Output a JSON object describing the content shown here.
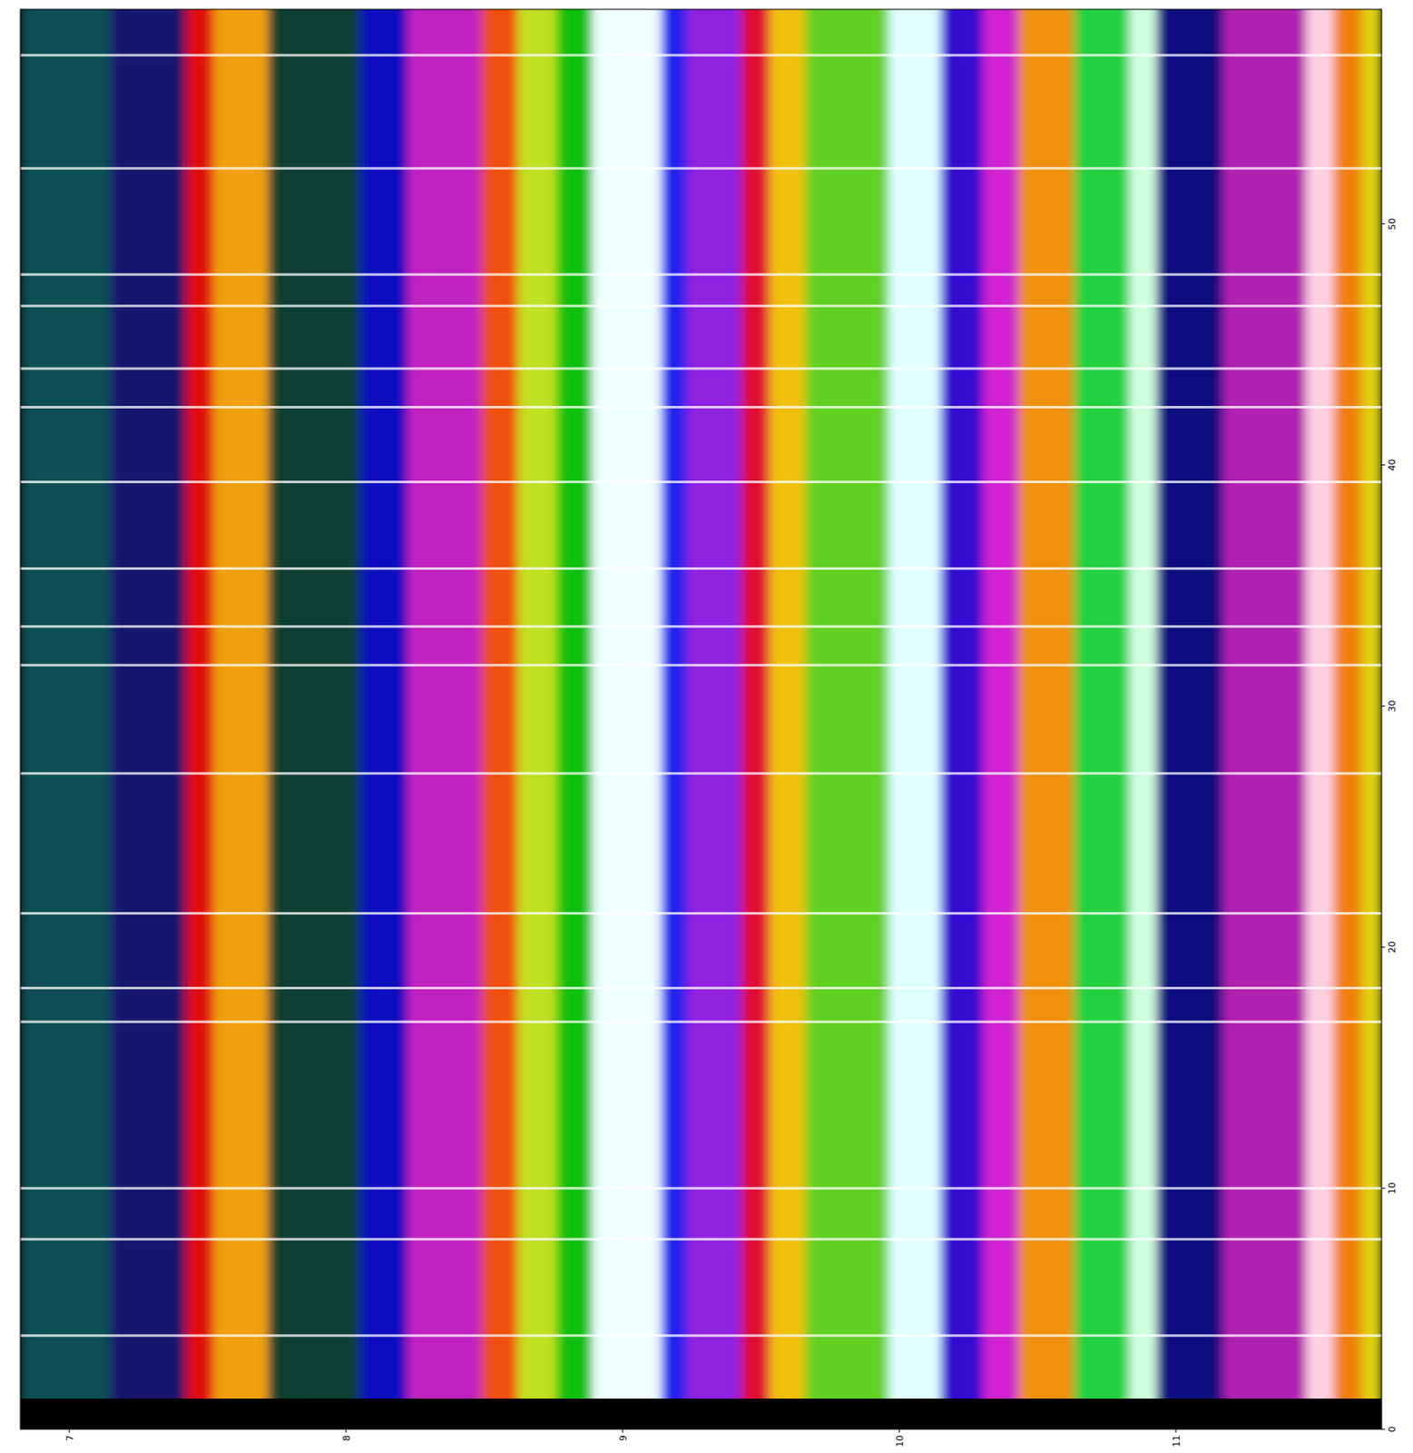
{
  "chart_data": {
    "type": "image",
    "xlim": [
      6.823,
      11.743
    ],
    "ylim": [
      0,
      58.9
    ],
    "xticks": [
      7,
      8,
      9,
      10,
      11
    ],
    "yticks": [
      0,
      10,
      20,
      30,
      40,
      50
    ],
    "y_range": [
      1.27,
      58.9
    ],
    "x_edges": [
      6.823,
      7.15,
      7.42,
      7.52,
      7.72,
      8.05,
      8.22,
      8.49,
      8.62,
      8.76,
      8.89,
      9.14,
      9.23,
      9.43,
      9.53,
      9.66,
      9.96,
      10.15,
      10.3,
      10.43,
      10.63,
      10.83,
      10.93,
      11.17,
      11.47,
      11.57,
      11.67,
      11.743
    ],
    "colors": [
      "#0b4f55",
      "#14146e",
      "#e01010",
      "#f0a010",
      "#0a4030",
      "#1010c0",
      "#c020c0",
      "#f05010",
      "#c0e020",
      "#10c010",
      "#f0ffff",
      "#2020f0",
      "#9020e0",
      "#e01030",
      "#f0c010",
      "#60d020",
      "#e0ffff",
      "#3010d0",
      "#d020d0",
      "#f09010",
      "#20d040",
      "#d0ffe0",
      "#101080",
      "#b020b0",
      "#ffd0e0",
      "#f08010",
      "#e0d010"
    ],
    "row_lines": [
      3.88,
      7.88,
      10.0,
      16.9,
      18.3,
      21.4,
      27.2,
      31.7,
      33.3,
      35.7,
      39.3,
      42.4,
      44.0,
      46.6,
      47.9,
      52.3,
      57.0
    ]
  }
}
